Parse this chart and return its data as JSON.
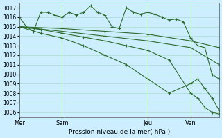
{
  "background_color": "#cceeff",
  "grid_color": "#aaddcc",
  "line_color": "#2d6a2d",
  "title": "Pression niveau de la mer( hPa )",
  "xlabel_ticks": [
    "Mer",
    "Sam",
    "Jeu",
    "Ven"
  ],
  "xlabel_tick_positions": [
    0,
    6,
    18,
    24
  ],
  "ylim": [
    1005.5,
    1017.5
  ],
  "yticks": [
    1006,
    1007,
    1008,
    1009,
    1010,
    1011,
    1012,
    1013,
    1014,
    1015,
    1016,
    1017
  ],
  "lines": [
    {
      "x": [
        0,
        1,
        2,
        3,
        4,
        5,
        6,
        7,
        8,
        9,
        10,
        11,
        12,
        13,
        14,
        15,
        16,
        17,
        18,
        19,
        20,
        21,
        22,
        23,
        24,
        25,
        26,
        27,
        28
      ],
      "y": [
        1016.0,
        1015.0,
        1014.5,
        1016.5,
        1016.5,
        1016.2,
        1016.0,
        1016.5,
        1016.2,
        1016.5,
        1017.2,
        1016.5,
        1016.2,
        1015.0,
        1014.8,
        1017.0,
        1016.5,
        1016.3,
        1016.5,
        1016.3,
        1016.0,
        1015.7,
        1015.8,
        1015.5,
        1013.8,
        1013.0,
        1012.8,
        1010.0,
        1009.5
      ],
      "marker": "+"
    },
    {
      "x": [
        0,
        6,
        12,
        18,
        24,
        28
      ],
      "y": [
        1015.0,
        1014.8,
        1014.5,
        1014.2,
        1013.5,
        1012.8
      ],
      "marker": "+"
    },
    {
      "x": [
        0,
        6,
        12,
        18,
        24,
        28
      ],
      "y": [
        1015.0,
        1014.5,
        1014.0,
        1013.5,
        1012.8,
        1011.0
      ],
      "marker": "+"
    },
    {
      "x": [
        0,
        3,
        6,
        9,
        12,
        15,
        18,
        21,
        24,
        25,
        26,
        27,
        28
      ],
      "y": [
        1015.0,
        1014.7,
        1014.3,
        1013.9,
        1013.5,
        1013.0,
        1012.5,
        1011.5,
        1008.0,
        1007.5,
        1006.5,
        1006.0,
        1005.8
      ],
      "marker": "+"
    },
    {
      "x": [
        0,
        3,
        6,
        9,
        12,
        15,
        18,
        21,
        24,
        25,
        26,
        27,
        28
      ],
      "y": [
        1015.0,
        1014.3,
        1013.8,
        1013.0,
        1012.0,
        1011.0,
        1009.5,
        1008.0,
        1009.0,
        1009.5,
        1008.5,
        1007.5,
        1006.2
      ],
      "marker": "+"
    }
  ],
  "vlines": [
    6,
    18,
    24
  ],
  "figsize": [
    3.2,
    2.0
  ],
  "dpi": 100
}
